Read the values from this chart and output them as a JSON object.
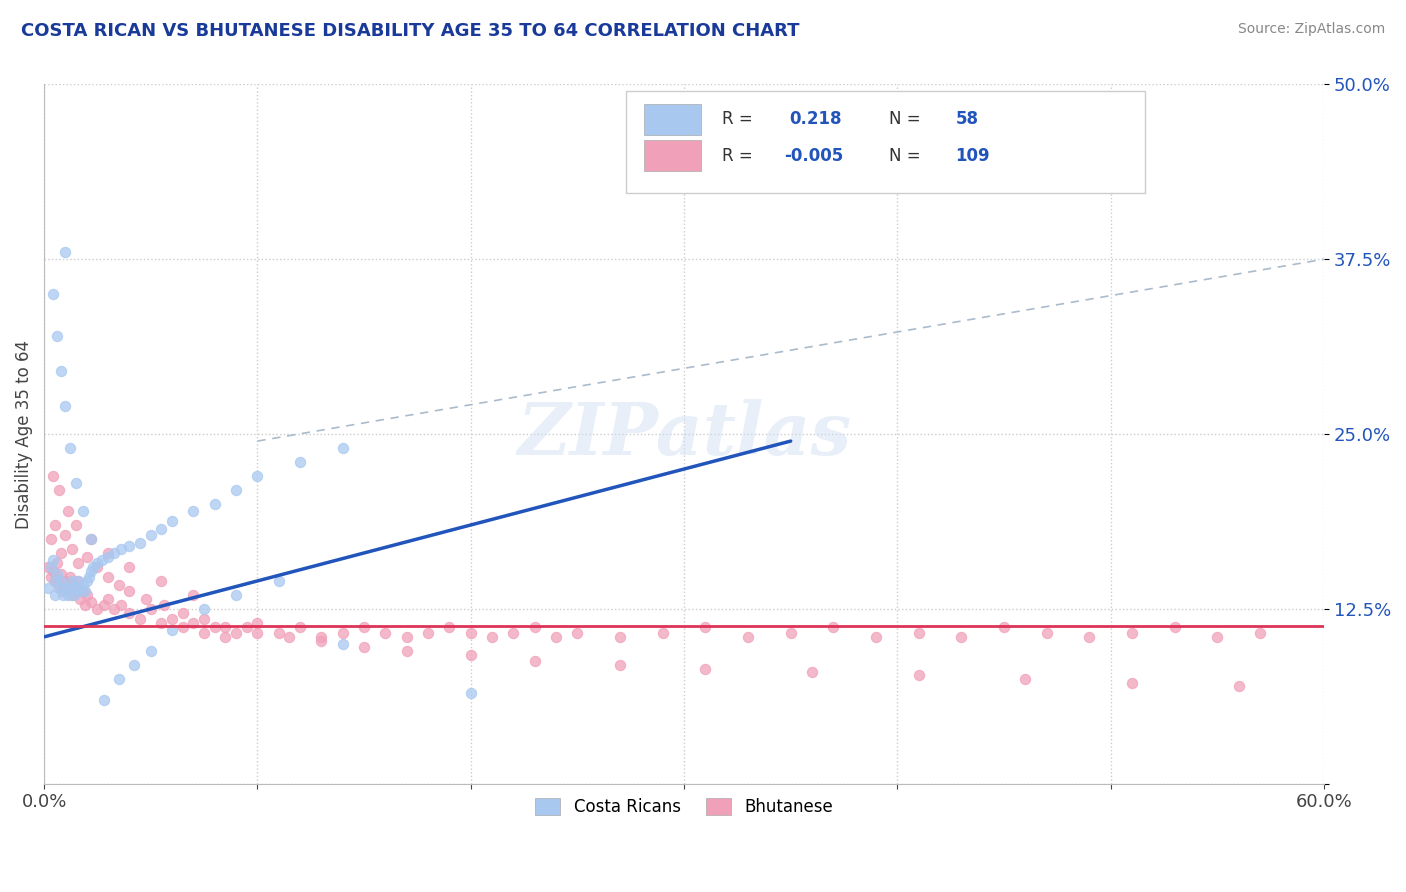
{
  "title": "COSTA RICAN VS BHUTANESE DISABILITY AGE 35 TO 64 CORRELATION CHART",
  "source": "Source: ZipAtlas.com",
  "ylabel": "Disability Age 35 to 64",
  "xlim": [
    0.0,
    0.6
  ],
  "ylim": [
    0.0,
    0.5
  ],
  "blue_color": "#a8c8f0",
  "pink_color": "#f0a0b8",
  "blue_line_color": "#2255bb",
  "pink_line_color": "#dd3355",
  "dash_line_color": "#aabbcc",
  "title_color": "#1a3a9a",
  "watermark": "ZIPatlas",
  "cr_x": [
    0.002,
    0.003,
    0.004,
    0.005,
    0.005,
    0.006,
    0.007,
    0.008,
    0.009,
    0.01,
    0.01,
    0.011,
    0.012,
    0.013,
    0.014,
    0.015,
    0.016,
    0.017,
    0.018,
    0.019,
    0.02,
    0.021,
    0.022,
    0.023,
    0.025,
    0.027,
    0.03,
    0.033,
    0.036,
    0.04,
    0.045,
    0.05,
    0.055,
    0.06,
    0.07,
    0.08,
    0.09,
    0.1,
    0.12,
    0.14,
    0.004,
    0.006,
    0.008,
    0.01,
    0.012,
    0.015,
    0.018,
    0.022,
    0.028,
    0.035,
    0.042,
    0.05,
    0.06,
    0.075,
    0.09,
    0.11,
    0.14,
    0.2
  ],
  "cr_y": [
    0.14,
    0.155,
    0.16,
    0.135,
    0.145,
    0.15,
    0.14,
    0.145,
    0.135,
    0.14,
    0.38,
    0.135,
    0.14,
    0.145,
    0.135,
    0.14,
    0.145,
    0.138,
    0.142,
    0.138,
    0.145,
    0.148,
    0.152,
    0.155,
    0.158,
    0.16,
    0.162,
    0.165,
    0.168,
    0.17,
    0.172,
    0.178,
    0.182,
    0.188,
    0.195,
    0.2,
    0.21,
    0.22,
    0.23,
    0.24,
    0.35,
    0.32,
    0.295,
    0.27,
    0.24,
    0.215,
    0.195,
    0.175,
    0.06,
    0.075,
    0.085,
    0.095,
    0.11,
    0.125,
    0.135,
    0.145,
    0.1,
    0.065
  ],
  "bh_x": [
    0.002,
    0.003,
    0.004,
    0.005,
    0.006,
    0.007,
    0.008,
    0.009,
    0.01,
    0.011,
    0.012,
    0.013,
    0.014,
    0.015,
    0.016,
    0.017,
    0.018,
    0.019,
    0.02,
    0.022,
    0.025,
    0.028,
    0.03,
    0.033,
    0.036,
    0.04,
    0.045,
    0.05,
    0.055,
    0.06,
    0.065,
    0.07,
    0.075,
    0.08,
    0.085,
    0.09,
    0.095,
    0.1,
    0.11,
    0.12,
    0.13,
    0.14,
    0.15,
    0.16,
    0.17,
    0.18,
    0.19,
    0.2,
    0.21,
    0.22,
    0.23,
    0.24,
    0.25,
    0.27,
    0.29,
    0.31,
    0.33,
    0.35,
    0.37,
    0.39,
    0.41,
    0.43,
    0.45,
    0.47,
    0.49,
    0.51,
    0.53,
    0.55,
    0.57,
    0.003,
    0.005,
    0.008,
    0.01,
    0.013,
    0.016,
    0.02,
    0.025,
    0.03,
    0.035,
    0.04,
    0.048,
    0.056,
    0.065,
    0.075,
    0.085,
    0.1,
    0.115,
    0.13,
    0.15,
    0.17,
    0.2,
    0.23,
    0.27,
    0.31,
    0.36,
    0.41,
    0.46,
    0.51,
    0.56,
    0.004,
    0.007,
    0.011,
    0.015,
    0.022,
    0.03,
    0.04,
    0.055,
    0.07
  ],
  "bh_y": [
    0.155,
    0.148,
    0.152,
    0.145,
    0.158,
    0.142,
    0.15,
    0.138,
    0.145,
    0.14,
    0.148,
    0.135,
    0.142,
    0.138,
    0.145,
    0.132,
    0.138,
    0.128,
    0.135,
    0.13,
    0.125,
    0.128,
    0.132,
    0.125,
    0.128,
    0.122,
    0.118,
    0.125,
    0.115,
    0.118,
    0.112,
    0.115,
    0.108,
    0.112,
    0.105,
    0.108,
    0.112,
    0.115,
    0.108,
    0.112,
    0.105,
    0.108,
    0.112,
    0.108,
    0.105,
    0.108,
    0.112,
    0.108,
    0.105,
    0.108,
    0.112,
    0.105,
    0.108,
    0.105,
    0.108,
    0.112,
    0.105,
    0.108,
    0.112,
    0.105,
    0.108,
    0.105,
    0.112,
    0.108,
    0.105,
    0.108,
    0.112,
    0.105,
    0.108,
    0.175,
    0.185,
    0.165,
    0.178,
    0.168,
    0.158,
    0.162,
    0.155,
    0.148,
    0.142,
    0.138,
    0.132,
    0.128,
    0.122,
    0.118,
    0.112,
    0.108,
    0.105,
    0.102,
    0.098,
    0.095,
    0.092,
    0.088,
    0.085,
    0.082,
    0.08,
    0.078,
    0.075,
    0.072,
    0.07,
    0.22,
    0.21,
    0.195,
    0.185,
    0.175,
    0.165,
    0.155,
    0.145,
    0.135
  ],
  "blue_line_x0": 0.0,
  "blue_line_y0": 0.105,
  "blue_line_x1": 0.35,
  "blue_line_y1": 0.245,
  "pink_line_y": 0.113,
  "dash_line_x0": 0.1,
  "dash_line_y0": 0.245,
  "dash_line_x1": 0.6,
  "dash_line_y1": 0.375
}
